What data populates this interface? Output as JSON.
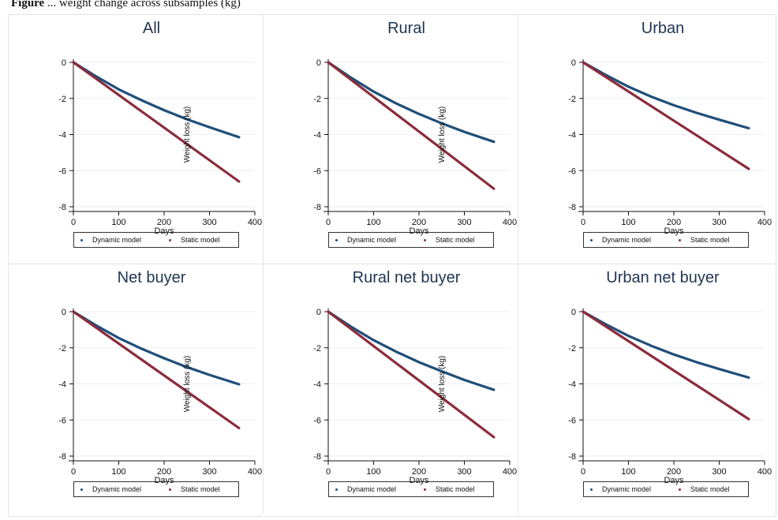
{
  "caption": {
    "bold": "Figure",
    "rest": " ... weight change across subsamples (kg)"
  },
  "colors": {
    "dynamic": "#1f4e79",
    "static": "#8b2c3b",
    "title": "#1f3552",
    "grid": "#e9eef3"
  },
  "chart_data": [
    {
      "type": "line",
      "title": "All",
      "xlabel": "Days",
      "ylabel": "Weight loss (kg)",
      "xlim": [
        0,
        400
      ],
      "ylim": [
        -8,
        0
      ],
      "xticks": [
        0,
        100,
        200,
        300,
        400
      ],
      "yticks": [
        0,
        -2,
        -4,
        -6,
        -8
      ],
      "grid": true,
      "legend_position": "bottom",
      "series": [
        {
          "name": "Dynamic model",
          "x": [
            0,
            50,
            100,
            150,
            200,
            250,
            300,
            365
          ],
          "y": [
            0,
            -0.78,
            -1.5,
            -2.1,
            -2.65,
            -3.15,
            -3.6,
            -4.15
          ]
        },
        {
          "name": "Static model",
          "x": [
            0,
            365
          ],
          "y": [
            0,
            -6.6
          ]
        }
      ]
    },
    {
      "type": "line",
      "title": "Rural",
      "xlabel": "Days",
      "ylabel": "Weight loss (kg)",
      "xlim": [
        0,
        400
      ],
      "ylim": [
        -8,
        0
      ],
      "xticks": [
        0,
        100,
        200,
        300,
        400
      ],
      "yticks": [
        0,
        -2,
        -4,
        -6,
        -8
      ],
      "grid": true,
      "legend_position": "bottom",
      "series": [
        {
          "name": "Dynamic model",
          "x": [
            0,
            50,
            100,
            150,
            200,
            250,
            300,
            365
          ],
          "y": [
            0,
            -0.85,
            -1.62,
            -2.28,
            -2.86,
            -3.38,
            -3.85,
            -4.4
          ]
        },
        {
          "name": "Static model",
          "x": [
            0,
            365
          ],
          "y": [
            0,
            -7.0
          ]
        }
      ]
    },
    {
      "type": "line",
      "title": "Urban",
      "xlabel": "Days",
      "ylabel": "",
      "xlim": [
        0,
        400
      ],
      "ylim": [
        -8,
        0
      ],
      "xticks": [
        0,
        100,
        200,
        300,
        400
      ],
      "yticks": [
        0,
        -2,
        -4,
        -6,
        -8
      ],
      "grid": true,
      "legend_position": "bottom",
      "series": [
        {
          "name": "Dynamic model",
          "x": [
            0,
            50,
            100,
            150,
            200,
            250,
            300,
            365
          ],
          "y": [
            0,
            -0.7,
            -1.35,
            -1.9,
            -2.38,
            -2.8,
            -3.18,
            -3.65
          ]
        },
        {
          "name": "Static model",
          "x": [
            0,
            365
          ],
          "y": [
            0,
            -5.9
          ]
        }
      ]
    },
    {
      "type": "line",
      "title": "Net buyer",
      "xlabel": "Days",
      "ylabel": "Weight loss (kg)",
      "xlim": [
        0,
        400
      ],
      "ylim": [
        -8,
        0
      ],
      "xticks": [
        0,
        100,
        200,
        300,
        400
      ],
      "yticks": [
        0,
        -2,
        -4,
        -6,
        -8
      ],
      "grid": true,
      "legend_position": "bottom",
      "series": [
        {
          "name": "Dynamic model",
          "x": [
            0,
            50,
            100,
            150,
            200,
            250,
            300,
            365
          ],
          "y": [
            0,
            -0.76,
            -1.46,
            -2.05,
            -2.58,
            -3.07,
            -3.5,
            -4.02
          ]
        },
        {
          "name": "Static model",
          "x": [
            0,
            365
          ],
          "y": [
            0,
            -6.45
          ]
        }
      ]
    },
    {
      "type": "line",
      "title": "Rural net buyer",
      "xlabel": "Days",
      "ylabel": "Weight loss (kg)",
      "xlim": [
        0,
        400
      ],
      "ylim": [
        -8,
        0
      ],
      "xticks": [
        0,
        100,
        200,
        300,
        400
      ],
      "yticks": [
        0,
        -2,
        -4,
        -6,
        -8
      ],
      "grid": true,
      "legend_position": "bottom",
      "series": [
        {
          "name": "Dynamic model",
          "x": [
            0,
            50,
            100,
            150,
            200,
            250,
            300,
            365
          ],
          "y": [
            0,
            -0.83,
            -1.58,
            -2.22,
            -2.8,
            -3.3,
            -3.78,
            -4.33
          ]
        },
        {
          "name": "Static model",
          "x": [
            0,
            365
          ],
          "y": [
            0,
            -6.95
          ]
        }
      ]
    },
    {
      "type": "line",
      "title": "Urban net buyer",
      "xlabel": "Days",
      "ylabel": "",
      "xlim": [
        0,
        400
      ],
      "ylim": [
        -8,
        0
      ],
      "xticks": [
        0,
        100,
        200,
        300,
        400
      ],
      "yticks": [
        0,
        -2,
        -4,
        -6,
        -8
      ],
      "grid": true,
      "legend_position": "bottom",
      "series": [
        {
          "name": "Dynamic model",
          "x": [
            0,
            50,
            100,
            150,
            200,
            250,
            300,
            365
          ],
          "y": [
            0,
            -0.7,
            -1.34,
            -1.89,
            -2.37,
            -2.8,
            -3.18,
            -3.65
          ]
        },
        {
          "name": "Static model",
          "x": [
            0,
            365
          ],
          "y": [
            0,
            -5.95
          ]
        }
      ]
    }
  ]
}
